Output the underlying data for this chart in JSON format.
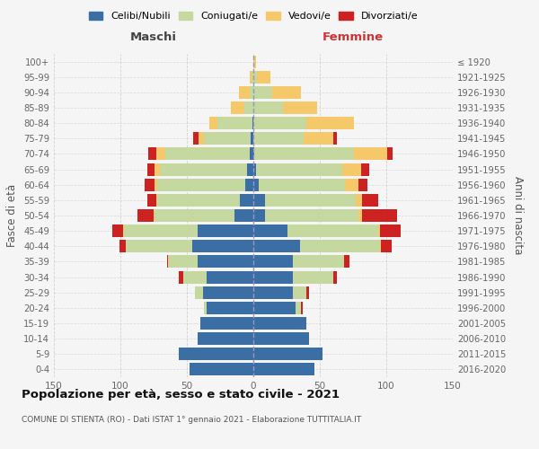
{
  "age_groups": [
    "0-4",
    "5-9",
    "10-14",
    "15-19",
    "20-24",
    "25-29",
    "30-34",
    "35-39",
    "40-44",
    "45-49",
    "50-54",
    "55-59",
    "60-64",
    "65-69",
    "70-74",
    "75-79",
    "80-84",
    "85-89",
    "90-94",
    "95-99",
    "100+"
  ],
  "birth_years": [
    "2016-2020",
    "2011-2015",
    "2006-2010",
    "2001-2005",
    "1996-2000",
    "1991-1995",
    "1986-1990",
    "1981-1985",
    "1976-1980",
    "1971-1975",
    "1966-1970",
    "1961-1965",
    "1956-1960",
    "1951-1955",
    "1946-1950",
    "1941-1945",
    "1936-1940",
    "1931-1935",
    "1926-1930",
    "1921-1925",
    "≤ 1920"
  ],
  "maschi_celibi": [
    48,
    56,
    42,
    40,
    35,
    38,
    35,
    42,
    46,
    42,
    14,
    10,
    6,
    5,
    3,
    2,
    1,
    0,
    0,
    0,
    0
  ],
  "maschi_coniugati": [
    0,
    0,
    0,
    0,
    2,
    6,
    18,
    22,
    50,
    55,
    60,
    62,
    66,
    65,
    63,
    35,
    26,
    7,
    3,
    1,
    0
  ],
  "maschi_vedovi": [
    0,
    0,
    0,
    0,
    0,
    0,
    0,
    0,
    0,
    1,
    1,
    1,
    2,
    4,
    7,
    4,
    6,
    10,
    8,
    2,
    0
  ],
  "maschi_divorziati": [
    0,
    0,
    0,
    0,
    0,
    0,
    3,
    1,
    5,
    8,
    12,
    7,
    8,
    6,
    6,
    4,
    0,
    0,
    0,
    0,
    0
  ],
  "femmine_celibi": [
    46,
    52,
    42,
    40,
    32,
    30,
    30,
    30,
    35,
    26,
    9,
    9,
    4,
    2,
    1,
    0,
    0,
    0,
    0,
    0,
    0
  ],
  "femmine_coniugati": [
    0,
    0,
    0,
    0,
    4,
    10,
    30,
    38,
    60,
    68,
    70,
    68,
    65,
    65,
    75,
    38,
    40,
    22,
    14,
    3,
    0
  ],
  "femmine_vedovi": [
    0,
    0,
    0,
    0,
    0,
    0,
    0,
    0,
    1,
    1,
    3,
    5,
    10,
    14,
    25,
    22,
    36,
    26,
    22,
    10,
    2
  ],
  "femmine_divorziati": [
    0,
    0,
    0,
    0,
    1,
    2,
    3,
    4,
    8,
    16,
    26,
    12,
    7,
    6,
    4,
    3,
    0,
    0,
    0,
    0,
    0
  ],
  "color_celibi": "#3a6ea5",
  "color_coniugati": "#c5d8a0",
  "color_vedovi": "#f5c96a",
  "color_divorziati": "#cc2222",
  "title": "Popolazione per età, sesso e stato civile - 2021",
  "subtitle": "COMUNE DI STIENTA (RO) - Dati ISTAT 1° gennaio 2021 - Elaborazione TUTTITALIA.IT",
  "xlabel_left": "Maschi",
  "xlabel_right": "Femmine",
  "ylabel_left": "Fasce di età",
  "ylabel_right": "Anni di nascita",
  "xlim": 150,
  "bg_color": "#f5f5f5",
  "grid_color": "#cccccc"
}
